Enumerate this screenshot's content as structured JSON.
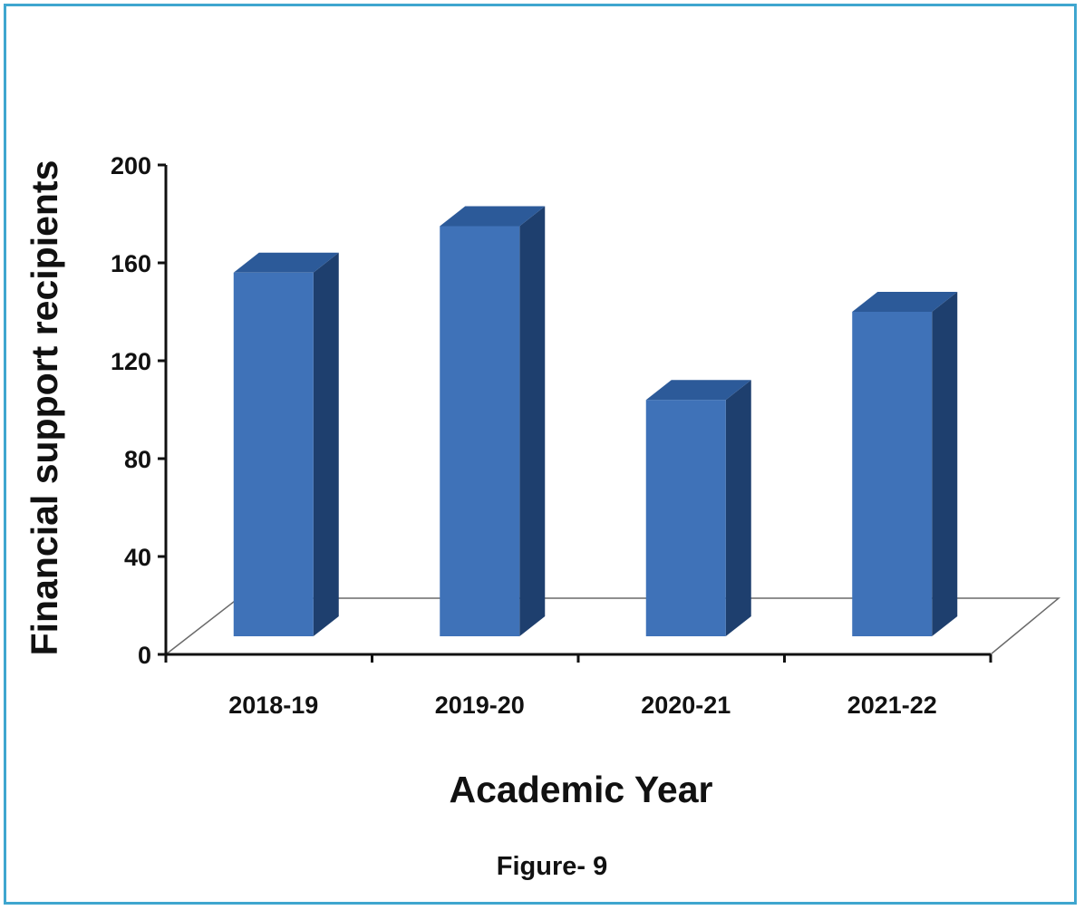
{
  "chart_data": {
    "type": "bar",
    "style": "3d-column",
    "categories": [
      "2018-19",
      "2019-20",
      "2020-21",
      "2021-22"
    ],
    "values": [
      156,
      175,
      104,
      140
    ],
    "xlabel": "Academic Year",
    "ylabel": "Financial support recipients",
    "ylim": [
      0,
      200
    ],
    "yticks": [
      "0",
      "40",
      "80",
      "120",
      "160",
      "200"
    ],
    "grid": false,
    "legend": "none",
    "colors": {
      "front": "#3f72b8",
      "side": "#1e3f6e",
      "top": "#2c5a99",
      "frame": "#3fa6cf"
    }
  },
  "caption": "Figure- 9"
}
